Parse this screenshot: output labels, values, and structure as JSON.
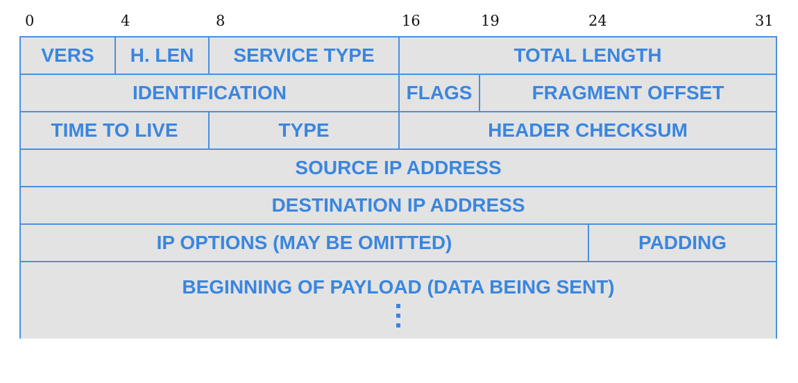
{
  "bit_positions": [
    "0",
    "4",
    "8",
    "16",
    "19",
    "24",
    "31"
  ],
  "colors": {
    "border": "#4a8fdc",
    "text": "#3a86e0",
    "fill": "#e3e3e3"
  },
  "rows": [
    [
      "VERS",
      "H. LEN",
      "SERVICE TYPE",
      "TOTAL LENGTH"
    ],
    [
      "IDENTIFICATION",
      "FLAGS",
      "FRAGMENT OFFSET"
    ],
    [
      "TIME TO LIVE",
      "TYPE",
      "HEADER CHECKSUM"
    ],
    [
      "SOURCE IP ADDRESS"
    ],
    [
      "DESTINATION IP ADDRESS"
    ],
    [
      "IP OPTIONS (MAY BE OMITTED)",
      "PADDING"
    ],
    [
      "BEGINNING OF PAYLOAD (DATA BEING SENT)"
    ]
  ],
  "continuation_icon": "vertical-ellipsis-icon"
}
